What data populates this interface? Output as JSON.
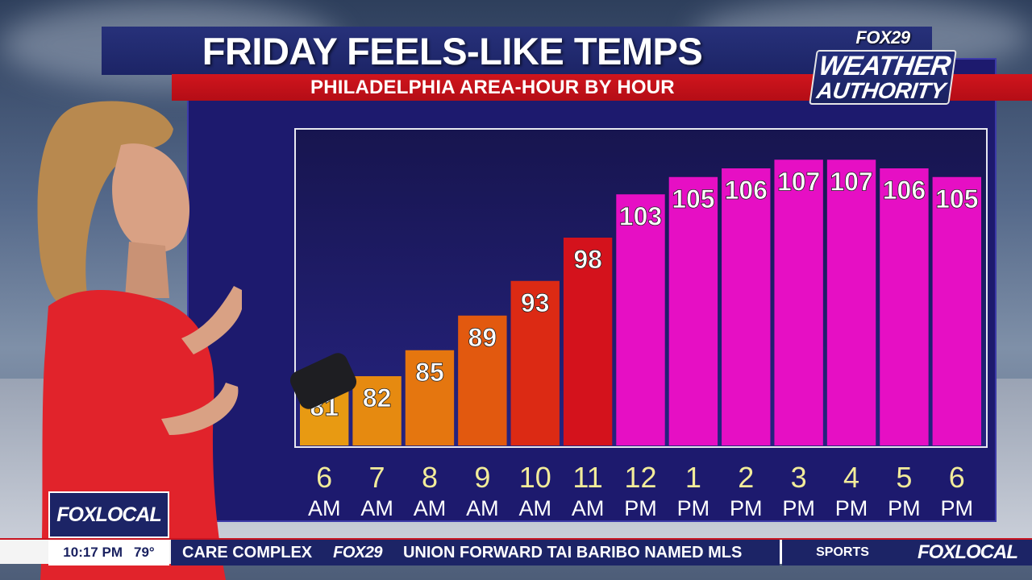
{
  "header": {
    "title": "FRIDAY FEELS-LIKE TEMPS",
    "subtitle": "PHILADELPHIA AREA-HOUR BY HOUR"
  },
  "logo": {
    "top": "FOX29",
    "line1": "WEATHER",
    "line2": "AUTHORITY"
  },
  "chart_data": {
    "type": "bar",
    "categories": [
      "6 AM",
      "7 AM",
      "8 AM",
      "9 AM",
      "10 AM",
      "11 AM",
      "12 PM",
      "1 PM",
      "2 PM",
      "3 PM",
      "4 PM",
      "5 PM",
      "6 PM"
    ],
    "hours": [
      "6",
      "7",
      "8",
      "9",
      "10",
      "11",
      "12",
      "1",
      "2",
      "3",
      "4",
      "5",
      "6"
    ],
    "periods": [
      "AM",
      "AM",
      "AM",
      "AM",
      "AM",
      "AM",
      "PM",
      "PM",
      "PM",
      "PM",
      "PM",
      "PM",
      "PM"
    ],
    "values": [
      81,
      82,
      85,
      89,
      93,
      98,
      103,
      105,
      106,
      107,
      107,
      106,
      105
    ],
    "colors": [
      "#e89a12",
      "#e68a10",
      "#e5760f",
      "#e2590f",
      "#dc2a14",
      "#d4121c",
      "#e60fc4",
      "#e60fc4",
      "#e60fc4",
      "#e60fc4",
      "#e60fc4",
      "#e60fc4",
      "#e60fc4"
    ],
    "ylim": [
      74,
      110
    ],
    "title": "FRIDAY FEELS-LIKE TEMPS",
    "xlabel": "",
    "ylabel": ""
  },
  "ticker": {
    "time": "10:17 PM",
    "temp": "79°",
    "headline_prefix": "CARE COMPLEX",
    "brand": "FOX29",
    "headline": "UNION FORWARD TAI BARIBO NAMED MLS",
    "section": "SPORTS",
    "logo": "FOXLOCAL"
  },
  "badge": {
    "label": "FOXLOCAL"
  }
}
